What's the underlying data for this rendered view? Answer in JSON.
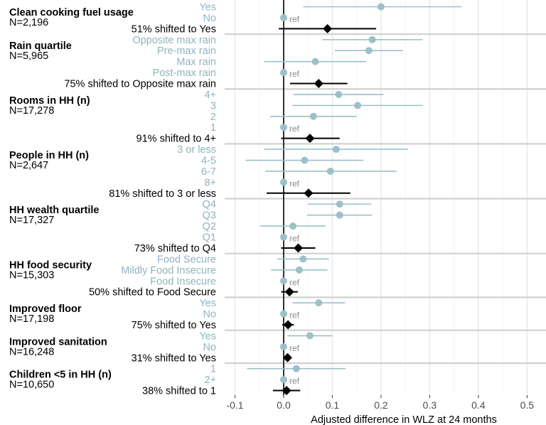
{
  "chart_data": {
    "type": "forest",
    "xlabel": "Adjusted difference in WLZ at 24 months",
    "xlim": [
      -0.13,
      0.53
    ],
    "xticks": [
      -0.1,
      0.0,
      0.1,
      0.2,
      0.3,
      0.4,
      0.5
    ],
    "xtick_labels": [
      "-0.1",
      "0.0",
      "0.1",
      "0.2",
      "0.3",
      "0.4",
      "0.5"
    ],
    "reference_line": 0,
    "ref_label": "ref",
    "colors": {
      "level": "#9cc0c8",
      "level_text": "#8fb3bf",
      "summary": "#000000",
      "grid": "#e8e8e8",
      "separator": "#d0d0d0"
    },
    "groups": [
      {
        "title": "Clean cooking fuel usage",
        "n": "N=2,196",
        "levels": [
          {
            "label": "Yes",
            "est": 0.2,
            "lo": 0.04,
            "hi": 0.365
          },
          {
            "label": "No",
            "ref": true
          }
        ],
        "summary": {
          "label": "51% shifted to Yes",
          "est": 0.09,
          "lo": -0.01,
          "hi": 0.19
        }
      },
      {
        "title": "Rain quartile",
        "n": "N=5,965",
        "levels": [
          {
            "label": "Opposite max rain",
            "est": 0.182,
            "lo": 0.08,
            "hi": 0.285
          },
          {
            "label": "Pre-max  rain",
            "est": 0.175,
            "lo": 0.105,
            "hi": 0.245
          },
          {
            "label": "Max rain",
            "est": 0.065,
            "lo": -0.04,
            "hi": 0.17
          },
          {
            "label": "Post-max  rain",
            "ref": true
          }
        ],
        "summary": {
          "label": "75% shifted to Opposite max rain",
          "est": 0.072,
          "lo": 0.013,
          "hi": 0.131
        }
      },
      {
        "title": "Rooms in HH (n)",
        "n": "N=17,278",
        "levels": [
          {
            "label": "4+",
            "est": 0.113,
            "lo": 0.02,
            "hi": 0.205
          },
          {
            "label": "3",
            "est": 0.152,
            "lo": 0.018,
            "hi": 0.286
          },
          {
            "label": "2",
            "est": 0.061,
            "lo": -0.028,
            "hi": 0.15
          },
          {
            "label": "1",
            "ref": true
          }
        ],
        "summary": {
          "label": "91% shifted to 4+",
          "est": 0.054,
          "lo": -0.005,
          "hi": 0.115
        }
      },
      {
        "title": "People in HH (n)",
        "n": "N=2,647",
        "levels": [
          {
            "label": "3 or less",
            "est": 0.108,
            "lo": -0.04,
            "hi": 0.256
          },
          {
            "label": "4-5",
            "est": 0.043,
            "lo": -0.078,
            "hi": 0.164
          },
          {
            "label": "6-7",
            "est": 0.096,
            "lo": -0.038,
            "hi": 0.232
          },
          {
            "label": "8+",
            "ref": true
          }
        ],
        "summary": {
          "label": "81% shifted to 3 or less",
          "est": 0.051,
          "lo": -0.035,
          "hi": 0.137
        }
      },
      {
        "title": "HH wealth quartile",
        "n": "N=17,327",
        "levels": [
          {
            "label": "Q4",
            "est": 0.115,
            "lo": 0.05,
            "hi": 0.18
          },
          {
            "label": "Q3",
            "est": 0.115,
            "lo": 0.048,
            "hi": 0.182
          },
          {
            "label": "Q2",
            "est": 0.019,
            "lo": -0.048,
            "hi": 0.086
          },
          {
            "label": "Q1",
            "ref": true
          }
        ],
        "summary": {
          "label": "73% shifted to Q4",
          "est": 0.03,
          "lo": -0.005,
          "hi": 0.065
        }
      },
      {
        "title": "HH food security",
        "n": "N=15,303",
        "levels": [
          {
            "label": "Food Secure",
            "est": 0.04,
            "lo": -0.013,
            "hi": 0.093
          },
          {
            "label": "Mildly Food Insecure",
            "est": 0.032,
            "lo": -0.026,
            "hi": 0.09
          },
          {
            "label": "Food Insecure",
            "ref": true
          }
        ],
        "summary": {
          "label": "50% shifted to Food Secure",
          "est": 0.012,
          "lo": -0.005,
          "hi": 0.029
        }
      },
      {
        "title": "Improved floor",
        "n": "N=17,198",
        "levels": [
          {
            "label": "Yes",
            "est": 0.072,
            "lo": 0.018,
            "hi": 0.126
          },
          {
            "label": "No",
            "ref": true
          }
        ],
        "summary": {
          "label": "75% shifted to Yes",
          "est": 0.009,
          "lo": -0.003,
          "hi": 0.021
        }
      },
      {
        "title": "Improved sanitation",
        "n": "N=16,248",
        "levels": [
          {
            "label": "Yes",
            "est": 0.054,
            "lo": 0.008,
            "hi": 0.1
          },
          {
            "label": "No",
            "ref": true
          }
        ],
        "summary": {
          "label": "31% shifted to Yes",
          "est": 0.008,
          "lo": 0.0,
          "hi": 0.016
        }
      },
      {
        "title": "Children <5 in HH (n)",
        "n": "N=10,650",
        "levels": [
          {
            "label": "1",
            "est": 0.026,
            "lo": -0.075,
            "hi": 0.127
          },
          {
            "label": "2+",
            "ref": true
          }
        ],
        "summary": {
          "label": "38% shifted to 1",
          "est": 0.006,
          "lo": -0.022,
          "hi": 0.034
        }
      }
    ]
  }
}
